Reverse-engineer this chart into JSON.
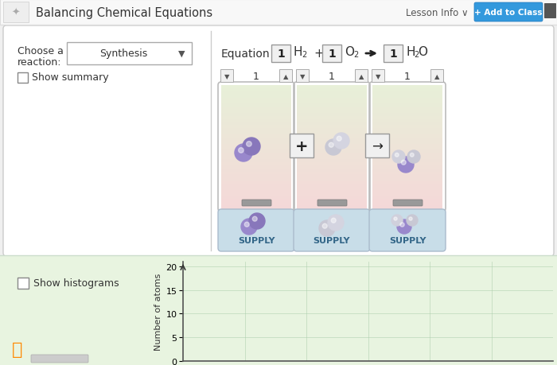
{
  "title": "Balancing Chemical Equations",
  "top_bar_bg": "#f5f5f5",
  "top_bar_border": "#dddddd",
  "add_btn_color": "#4da6e8",
  "main_panel_bg": "#ffffff",
  "main_panel_border": "#cccccc",
  "bottom_panel_bg": "#e8f5e4",
  "equation_text": "Equation",
  "choose_label1": "Choose a",
  "choose_label2": "reaction:",
  "synthesis_label": "Synthesis",
  "show_summary": "Show summary",
  "show_histograms": "Show histograms",
  "supply_labels": [
    "SUPPLY",
    "SUPPLY",
    "SUPPLY"
  ],
  "yticks": [
    0,
    5,
    10,
    15,
    20
  ],
  "ylabel": "Number of atoms",
  "container_green": "#e8f0dc",
  "container_pink": "#f5dada",
  "container_blue": "#c8dde8",
  "atom_purple1": "#9988cc",
  "atom_purple2": "#8877bb",
  "atom_gray1": "#d8d8e0",
  "atom_gray2": "#c8c8d8",
  "scrollbar_color": "#999999",
  "ctrl_color": "#555555",
  "box_bg": "#f0f0f0",
  "box_border": "#aaaaaa",
  "panel_divider": "#cccccc",
  "supply_text_color": "#336688",
  "lesson_info": "Lesson Info ∨",
  "add_to_class": "+ Add to Class"
}
